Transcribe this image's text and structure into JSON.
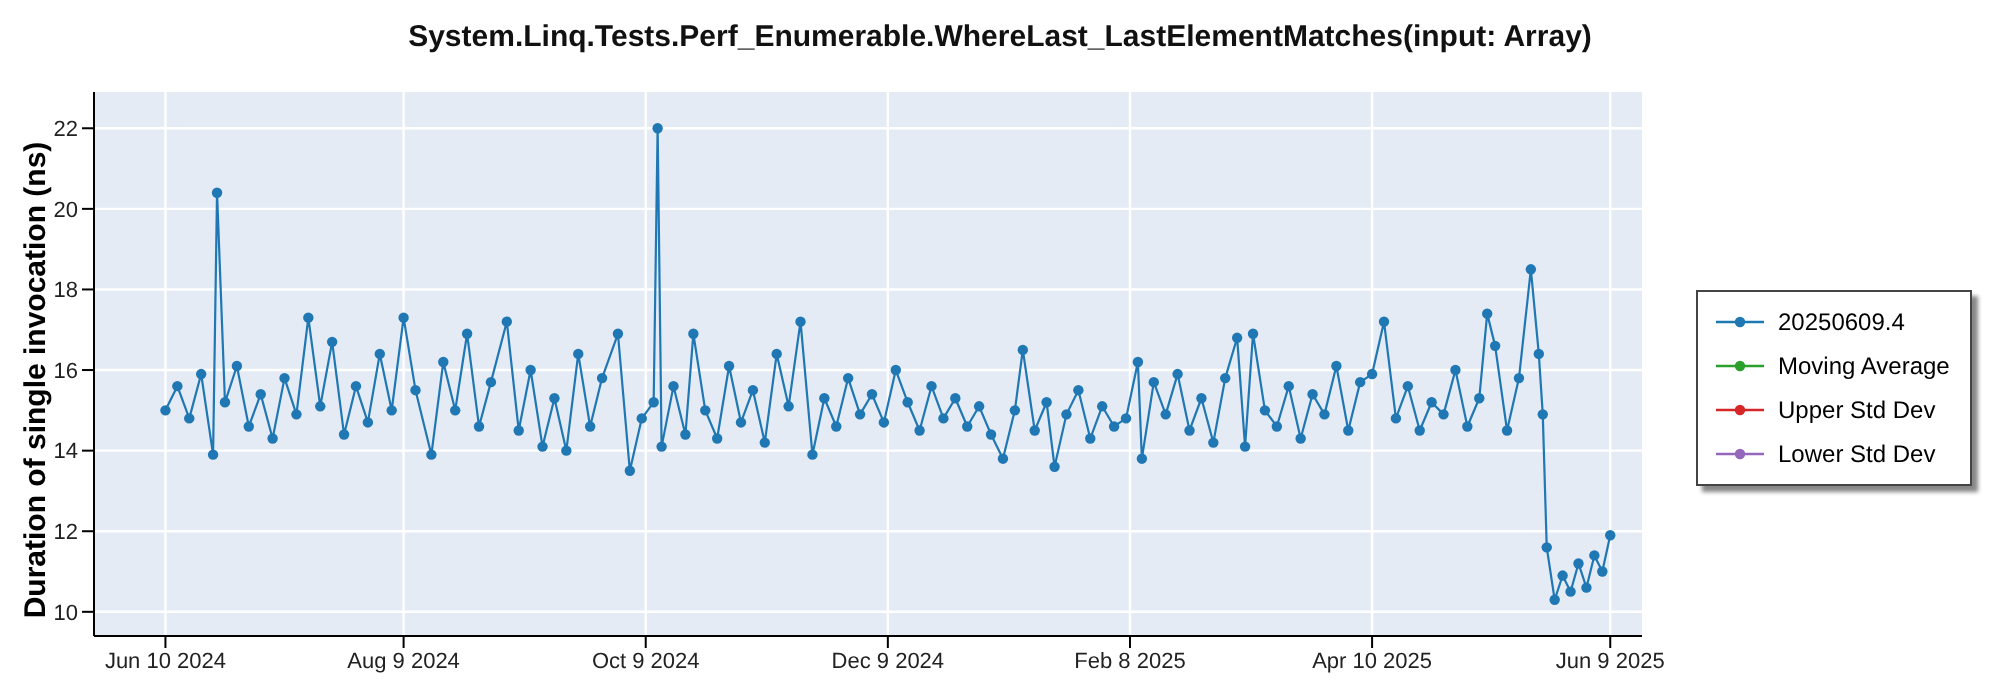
{
  "chart_data": {
    "type": "line",
    "title": "System.Linq.Tests.Perf_Enumerable.WhereLast_LastElementMatches(input: Array)",
    "ylabel": "Duration of single invocation (ns)",
    "x": [
      "2024-06-10",
      "2024-06-13",
      "2024-06-16",
      "2024-06-19",
      "2024-06-22",
      "2024-06-23",
      "2024-06-25",
      "2024-06-28",
      "2024-07-01",
      "2024-07-04",
      "2024-07-07",
      "2024-07-10",
      "2024-07-13",
      "2024-07-16",
      "2024-07-19",
      "2024-07-22",
      "2024-07-25",
      "2024-07-28",
      "2024-07-31",
      "2024-08-03",
      "2024-08-06",
      "2024-08-09",
      "2024-08-12",
      "2024-08-16",
      "2024-08-19",
      "2024-08-22",
      "2024-08-25",
      "2024-08-28",
      "2024-08-31",
      "2024-09-04",
      "2024-09-07",
      "2024-09-10",
      "2024-09-13",
      "2024-09-16",
      "2024-09-19",
      "2024-09-22",
      "2024-09-25",
      "2024-09-28",
      "2024-10-02",
      "2024-10-05",
      "2024-10-08",
      "2024-10-11",
      "2024-10-12",
      "2024-10-13",
      "2024-10-16",
      "2024-10-19",
      "2024-10-21",
      "2024-10-24",
      "2024-10-27",
      "2024-10-30",
      "2024-11-02",
      "2024-11-05",
      "2024-11-08",
      "2024-11-11",
      "2024-11-14",
      "2024-11-17",
      "2024-11-20",
      "2024-11-23",
      "2024-11-26",
      "2024-11-29",
      "2024-12-02",
      "2024-12-05",
      "2024-12-08",
      "2024-12-11",
      "2024-12-14",
      "2024-12-17",
      "2024-12-20",
      "2024-12-23",
      "2024-12-26",
      "2024-12-29",
      "2025-01-01",
      "2025-01-04",
      "2025-01-07",
      "2025-01-10",
      "2025-01-12",
      "2025-01-15",
      "2025-01-18",
      "2025-01-20",
      "2025-01-23",
      "2025-01-26",
      "2025-01-29",
      "2025-02-01",
      "2025-02-04",
      "2025-02-07",
      "2025-02-10",
      "2025-02-11",
      "2025-02-14",
      "2025-02-17",
      "2025-02-20",
      "2025-02-23",
      "2025-02-26",
      "2025-03-01",
      "2025-03-04",
      "2025-03-07",
      "2025-03-09",
      "2025-03-11",
      "2025-03-14",
      "2025-03-17",
      "2025-03-20",
      "2025-03-23",
      "2025-03-26",
      "2025-03-29",
      "2025-04-01",
      "2025-04-04",
      "2025-04-07",
      "2025-04-10",
      "2025-04-13",
      "2025-04-16",
      "2025-04-19",
      "2025-04-22",
      "2025-04-25",
      "2025-04-28",
      "2025-05-01",
      "2025-05-04",
      "2025-05-07",
      "2025-05-09",
      "2025-05-11",
      "2025-05-14",
      "2025-05-17",
      "2025-05-20",
      "2025-05-22",
      "2025-05-23",
      "2025-05-24",
      "2025-05-26",
      "2025-05-28",
      "2025-05-30",
      "2025-06-01",
      "2025-06-03",
      "2025-06-05",
      "2025-06-07",
      "2025-06-09"
    ],
    "series": [
      {
        "name": "20250609.4",
        "color": "#1f77b4",
        "values": [
          15.0,
          15.6,
          14.8,
          15.9,
          13.9,
          20.4,
          15.2,
          16.1,
          14.6,
          15.4,
          14.3,
          15.8,
          14.9,
          17.3,
          15.1,
          16.7,
          14.4,
          15.6,
          14.7,
          16.4,
          15.0,
          17.3,
          15.5,
          13.9,
          16.2,
          15.0,
          16.9,
          14.6,
          15.7,
          17.2,
          14.5,
          16.0,
          14.1,
          15.3,
          14.0,
          16.4,
          14.6,
          15.8,
          16.9,
          13.5,
          14.8,
          15.2,
          22.0,
          14.1,
          15.6,
          14.4,
          16.9,
          15.0,
          14.3,
          16.1,
          14.7,
          15.5,
          14.2,
          16.4,
          15.1,
          17.2,
          13.9,
          15.3,
          14.6,
          15.8,
          14.9,
          15.4,
          14.7,
          16.0,
          15.2,
          14.5,
          15.6,
          14.8,
          15.3,
          14.6,
          15.1,
          14.4,
          13.8,
          15.0,
          16.5,
          14.5,
          15.2,
          13.6,
          14.9,
          15.5,
          14.3,
          15.1,
          14.6,
          14.8,
          16.2,
          13.8,
          15.7,
          14.9,
          15.9,
          14.5,
          15.3,
          14.2,
          15.8,
          16.8,
          14.1,
          16.9,
          15.0,
          14.6,
          15.6,
          14.3,
          15.4,
          14.9,
          16.1,
          14.5,
          15.7,
          15.9,
          17.2,
          14.8,
          15.6,
          14.5,
          15.2,
          14.9,
          16.0,
          14.6,
          15.3,
          17.4,
          16.6,
          14.5,
          15.8,
          18.5,
          16.4,
          14.9,
          11.6,
          10.3,
          10.9,
          10.5,
          11.2,
          10.6,
          11.4,
          11.0,
          11.9
        ]
      },
      {
        "name": "Moving Average",
        "color": "#2ca02c",
        "values": [
          null,
          null,
          null,
          null,
          null,
          null,
          null,
          null,
          null,
          null,
          null,
          null,
          null,
          null,
          null,
          null,
          null,
          null,
          null,
          null,
          null,
          null,
          null,
          null,
          null,
          null,
          null,
          null,
          null,
          null,
          null,
          null,
          null,
          null,
          null,
          null,
          null,
          null,
          null,
          null,
          null,
          null,
          null,
          null,
          null,
          null,
          null,
          null,
          null,
          null,
          null,
          null,
          null,
          null,
          null,
          null,
          null,
          null,
          null,
          null,
          null,
          null,
          null,
          null,
          null,
          null,
          null,
          null,
          null,
          null,
          null,
          null,
          null,
          null,
          null,
          null,
          null,
          null,
          null,
          null,
          null,
          null,
          null,
          null,
          null,
          null,
          null,
          null,
          null,
          null,
          null,
          null,
          null,
          null,
          null,
          null,
          null,
          null,
          null,
          null,
          null,
          null,
          null,
          null,
          null,
          null,
          null,
          null,
          null,
          null,
          null,
          null,
          null,
          null,
          null,
          null,
          null,
          null,
          null,
          null,
          null,
          null,
          null,
          null,
          null,
          null,
          null,
          null,
          null,
          null,
          null
        ]
      },
      {
        "name": "Upper Std Dev",
        "color": "#d62728",
        "values": [
          null,
          null,
          null,
          null,
          null,
          null,
          null,
          null,
          null,
          null,
          null,
          null,
          null,
          null,
          null,
          null,
          null,
          null,
          null,
          null,
          null,
          null,
          null,
          null,
          null,
          null,
          null,
          null,
          null,
          null,
          null,
          null,
          null,
          null,
          null,
          null,
          null,
          null,
          null,
          null,
          null,
          null,
          null,
          null,
          null,
          null,
          null,
          null,
          null,
          null,
          null,
          null,
          null,
          null,
          null,
          null,
          null,
          null,
          null,
          null,
          null,
          null,
          null,
          null,
          null,
          null,
          null,
          null,
          null,
          null,
          null,
          null,
          null,
          null,
          null,
          null,
          null,
          null,
          null,
          null,
          null,
          null,
          null,
          null,
          null,
          null,
          null,
          null,
          null,
          null,
          null,
          null,
          null,
          null,
          null,
          null,
          null,
          null,
          null,
          null,
          null,
          null,
          null,
          null,
          null,
          null,
          null,
          null,
          null,
          null,
          null,
          null,
          null,
          null,
          null,
          null,
          null,
          null,
          null,
          null,
          null,
          null,
          null,
          null,
          null,
          null,
          null,
          null,
          null,
          null,
          null
        ]
      },
      {
        "name": "Lower Std Dev",
        "color": "#9467bd",
        "values": [
          null,
          null,
          null,
          null,
          null,
          null,
          null,
          null,
          null,
          null,
          null,
          null,
          null,
          null,
          null,
          null,
          null,
          null,
          null,
          null,
          null,
          null,
          null,
          null,
          null,
          null,
          null,
          null,
          null,
          null,
          null,
          null,
          null,
          null,
          null,
          null,
          null,
          null,
          null,
          null,
          null,
          null,
          null,
          null,
          null,
          null,
          null,
          null,
          null,
          null,
          null,
          null,
          null,
          null,
          null,
          null,
          null,
          null,
          null,
          null,
          null,
          null,
          null,
          null,
          null,
          null,
          null,
          null,
          null,
          null,
          null,
          null,
          null,
          null,
          null,
          null,
          null,
          null,
          null,
          null,
          null,
          null,
          null,
          null,
          null,
          null,
          null,
          null,
          null,
          null,
          null,
          null,
          null,
          null,
          null,
          null,
          null,
          null,
          null,
          null,
          null,
          null,
          null,
          null,
          null,
          null,
          null,
          null,
          null,
          null,
          null,
          null,
          null,
          null,
          null,
          null,
          null,
          null,
          null,
          null,
          null,
          null,
          null,
          null,
          null,
          null,
          null,
          null,
          null,
          null,
          null
        ]
      }
    ],
    "xlim": [
      "2024-05-23",
      "2025-06-17"
    ],
    "xticks": [
      {
        "value": "2024-06-10",
        "label": "Jun 10 2024"
      },
      {
        "value": "2024-08-09",
        "label": "Aug 9 2024"
      },
      {
        "value": "2024-10-09",
        "label": "Oct 9 2024"
      },
      {
        "value": "2024-12-09",
        "label": "Dec 9 2024"
      },
      {
        "value": "2025-02-08",
        "label": "Feb 8 2025"
      },
      {
        "value": "2025-04-10",
        "label": "Apr 10 2025"
      },
      {
        "value": "2025-06-09",
        "label": "Jun 9 2025"
      }
    ],
    "ylim": [
      9.4,
      22.9
    ],
    "yticks": [
      10,
      12,
      14,
      16,
      18,
      20,
      22
    ],
    "grid": true,
    "legend": "right",
    "marker": "circle",
    "line_style": "solid"
  }
}
